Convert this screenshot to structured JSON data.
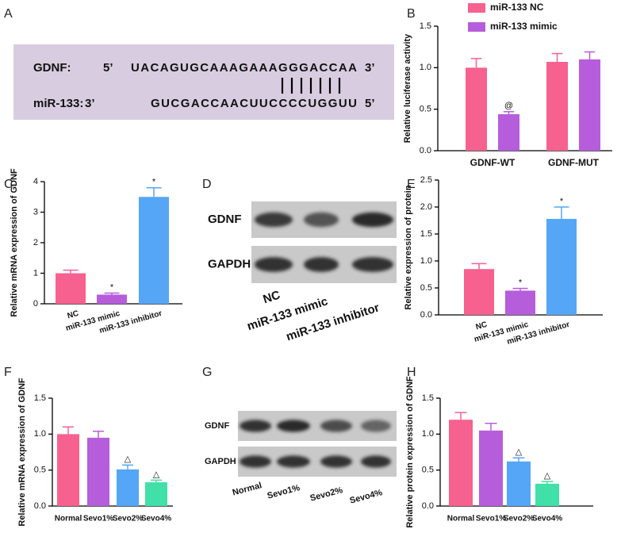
{
  "sequence": {
    "label": "A",
    "rows": [
      {
        "name": "GDNF:",
        "left": "5’",
        "seq": "UACAGUGCAAAGAAAGGGACCAA",
        "right": "3’"
      },
      {
        "name": "miR-133:",
        "left": "3’",
        "seq": "GUCGACCAACUUCCCCUGGUU",
        "right": "5’"
      }
    ]
  },
  "blot_d": {
    "label": "D",
    "rows": [
      "GDNF",
      "GAPDH"
    ],
    "lanes": [
      "NC",
      "miR-133 mimic",
      "miR-133 inhibitor"
    ]
  },
  "blot_g": {
    "label": "G",
    "rows": [
      "GDNF",
      "GAPDH"
    ],
    "lanes": [
      "Normal",
      "Sevo1%",
      "Sevo2%",
      "Sevo4%"
    ]
  },
  "chart_data": [
    {
      "type": "grouped-bar",
      "label": "B",
      "ylabel": "Relative luciferase activity",
      "categories": [
        "GDNF-WT",
        "GDNF-MUT"
      ],
      "series": [
        {
          "name": "miR-133 NC",
          "color": "#f7618f",
          "values": [
            1.0,
            1.07
          ],
          "errors": [
            0.11,
            0.1
          ],
          "marks": [
            null,
            null
          ]
        },
        {
          "name": "miR-133 mimic",
          "color": "#b65ddb",
          "values": [
            0.44,
            1.1
          ],
          "errors": [
            0.03,
            0.09
          ],
          "marks": [
            "@",
            null
          ]
        }
      ],
      "ylim": [
        0,
        1.5
      ],
      "yticks": [
        {
          "value": 0,
          "label": "0.0"
        },
        {
          "value": 0.5,
          "label": "0.5"
        },
        {
          "value": 1,
          "label": "1.0"
        },
        {
          "value": 1.5,
          "label": "1.5"
        }
      ]
    },
    {
      "type": "bar",
      "label": "C",
      "ylabel": "Relative mRNA expression of GDNF",
      "categories": [
        "NC",
        "miR-133 mimic",
        "miR-133 inhibitor"
      ],
      "values": [
        1.0,
        0.3,
        3.5
      ],
      "errors": [
        0.1,
        0.05,
        0.3
      ],
      "marks": [
        null,
        "*",
        "*"
      ],
      "colors": [
        "#f7618f",
        "#b65ddb",
        "#55a6f6"
      ],
      "ylim": [
        0,
        4
      ],
      "yticks": [
        0,
        1,
        2,
        3,
        4
      ]
    },
    {
      "type": "bar",
      "label": "E",
      "ylabel": "Relative expression of protein",
      "categories": [
        "NC",
        "miR-133 mimic",
        "miR-133 inhibitor"
      ],
      "values": [
        0.85,
        0.45,
        1.78
      ],
      "errors": [
        0.1,
        0.04,
        0.22
      ],
      "marks": [
        null,
        "*",
        "*"
      ],
      "colors": [
        "#f7618f",
        "#b65ddb",
        "#55a6f6"
      ],
      "ylim": [
        0,
        2.5
      ],
      "yticks": [
        {
          "value": 0,
          "label": "0.0"
        },
        {
          "value": 0.5,
          "label": "0.5"
        },
        {
          "value": 1,
          "label": "1.0"
        },
        {
          "value": 1.5,
          "label": "1.5"
        },
        {
          "value": 2,
          "label": "2.0"
        },
        {
          "value": 2.5,
          "label": "2.5"
        }
      ]
    },
    {
      "type": "bar",
      "label": "F",
      "ylabel": "Relative mRNA expression of GDNF",
      "categories": [
        "Normal",
        "Sevo1%",
        "Sevo2%",
        "Sevo4%"
      ],
      "values": [
        1.0,
        0.95,
        0.51,
        0.33
      ],
      "errors": [
        0.1,
        0.09,
        0.06,
        0.03
      ],
      "marks": [
        null,
        null,
        "△",
        "△"
      ],
      "colors": [
        "#f7618f",
        "#b65ddb",
        "#55a6f6",
        "#40e0a8"
      ],
      "ylim": [
        0,
        1.5
      ],
      "yticks": [
        {
          "value": 0,
          "label": "0.0"
        },
        {
          "value": 0.5,
          "label": "0.5"
        },
        {
          "value": 1,
          "label": "1.0"
        },
        {
          "value": 1.5,
          "label": "1.5"
        }
      ]
    },
    {
      "type": "bar",
      "label": "H",
      "ylabel": "Relative protein expression of GDNF",
      "categories": [
        "Normal",
        "Sevo1%",
        "Sevo2%",
        "Sevo4%"
      ],
      "values": [
        1.2,
        1.05,
        0.62,
        0.31
      ],
      "errors": [
        0.1,
        0.1,
        0.05,
        0.03
      ],
      "marks": [
        null,
        null,
        "△",
        "△"
      ],
      "colors": [
        "#f7618f",
        "#b65ddb",
        "#55a6f6",
        "#40e0a8"
      ],
      "ylim": [
        0,
        1.5
      ],
      "yticks": [
        {
          "value": 0,
          "label": "0.0"
        },
        {
          "value": 0.5,
          "label": "0.5"
        },
        {
          "value": 1,
          "label": "1.0"
        },
        {
          "value": 1.5,
          "label": "1.5"
        }
      ]
    }
  ]
}
